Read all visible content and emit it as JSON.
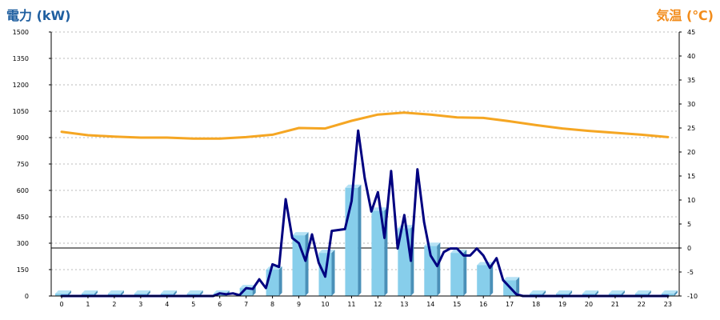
{
  "chart_data": {
    "type": "bar",
    "y_left_label": "電力 (kW)",
    "y_right_label": "気温 (℃)",
    "x_ticks": [
      "0",
      "1",
      "2",
      "3",
      "4",
      "5",
      "6",
      "7",
      "8",
      "9",
      "10",
      "11",
      "12",
      "13",
      "14",
      "15",
      "16",
      "17",
      "18",
      "19",
      "20",
      "21",
      "22",
      "23"
    ],
    "y_left_ticks": [
      "0",
      "150",
      "300",
      "450",
      "600",
      "750",
      "900",
      "1050",
      "1200",
      "1350",
      "1500"
    ],
    "y_right_ticks": [
      "-10",
      "-5",
      "0",
      "5",
      "10",
      "15",
      "20",
      "25",
      "30",
      "35",
      "40",
      "45"
    ],
    "y_left_range": [
      0,
      1500
    ],
    "y_right_range": [
      -10,
      45
    ],
    "grid": "horizontal dotted",
    "reference_line_temp": 0,
    "series": [
      {
        "kind": "bar",
        "axis": "left",
        "x": [
          0,
          1,
          2,
          3,
          4,
          5,
          6,
          7,
          8,
          9,
          10,
          11,
          12,
          13,
          14,
          15,
          16,
          17,
          18,
          19,
          20,
          21,
          22,
          23
        ],
        "values": [
          0,
          0,
          0,
          0,
          0,
          0,
          10,
          45,
          150,
          345,
          245,
          615,
          485,
          385,
          285,
          245,
          175,
          90,
          0,
          0,
          0,
          0,
          0,
          0
        ]
      },
      {
        "kind": "line",
        "axis": "left",
        "color": "#000080",
        "x": [
          0,
          1,
          2,
          3,
          4,
          5,
          5.75,
          6,
          6.25,
          6.5,
          6.75,
          7,
          7.25,
          7.5,
          7.75,
          8,
          8.25,
          8.5,
          8.75,
          9,
          9.25,
          9.5,
          9.75,
          10,
          10.25,
          10.5,
          10.75,
          11,
          11.25,
          11.5,
          11.75,
          12,
          12.25,
          12.5,
          12.75,
          13,
          13.25,
          13.5,
          13.75,
          14,
          14.25,
          14.5,
          14.75,
          15,
          15.25,
          15.5,
          15.75,
          16,
          16.25,
          16.5,
          16.75,
          17,
          17.25,
          17.5,
          17.75,
          18,
          19,
          20,
          21,
          22,
          23
        ],
        "values": [
          0,
          0,
          0,
          0,
          0,
          0,
          0,
          15,
          10,
          15,
          5,
          45,
          40,
          95,
          45,
          180,
          165,
          550,
          330,
          300,
          200,
          350,
          190,
          110,
          370,
          375,
          380,
          540,
          940,
          670,
          480,
          590,
          330,
          710,
          270,
          460,
          200,
          720,
          420,
          230,
          170,
          250,
          270,
          270,
          230,
          230,
          270,
          230,
          160,
          215,
          90,
          50,
          10,
          0,
          0,
          0,
          0,
          0,
          0,
          0,
          0
        ]
      },
      {
        "kind": "line",
        "axis": "right",
        "color": "#f5a623",
        "x": [
          0,
          1,
          2,
          3,
          4,
          5,
          6,
          7,
          8,
          9,
          10,
          11,
          12,
          13,
          14,
          15,
          16,
          17,
          18,
          19,
          20,
          21,
          22,
          23
        ],
        "values": [
          24.2,
          23.5,
          23.2,
          23,
          23,
          22.8,
          22.8,
          23.1,
          23.6,
          25,
          24.9,
          26.5,
          27.8,
          28.2,
          27.8,
          27.2,
          27.1,
          26.4,
          25.6,
          24.9,
          24.4,
          24,
          23.6,
          23.1
        ]
      }
    ]
  }
}
